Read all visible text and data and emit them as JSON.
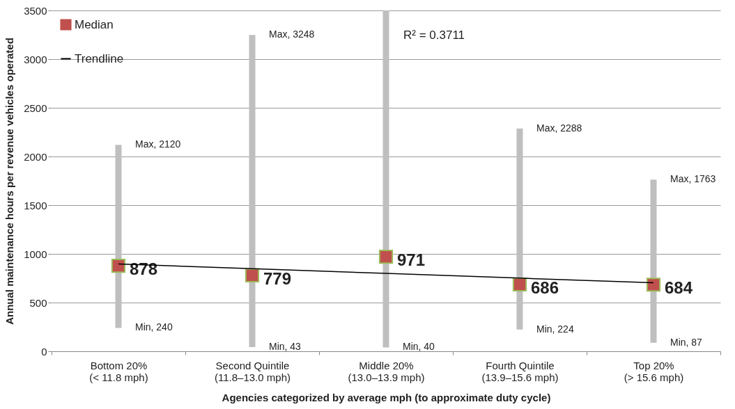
{
  "chart_data": {
    "type": "bar",
    "xlabel": "Agencies categorized by average mph (to approximate duty cycle)",
    "ylabel": "Annual maintenance hours per revenue vehicles operated",
    "categories": [
      "Bottom 20%\n(< 11.8 mph)",
      "Second Quintile\n(11.8–13.0 mph)",
      "Middle 20%\n(13.0–13.9 mph)",
      "Fourth Quintile\n(13.9–15.6 mph)",
      "Top 20%\n(> 15.6 mph)"
    ],
    "series": [
      {
        "color": "#bfbfbf",
        "base": [
          240,
          43,
          40,
          224,
          87
        ],
        "values": [
          1880,
          3205,
          3460,
          2064,
          1676
        ]
      },
      {
        "type": "scatter",
        "name": "Median",
        "color": "#c0504d",
        "marker": "square",
        "values": [
          878,
          779,
          971,
          686,
          684
        ],
        "value_labels": [
          "878",
          "779",
          "971",
          "686",
          "684"
        ]
      },
      {
        "type": "line",
        "name": "Trendline",
        "color": "#000000",
        "line_style": "solid",
        "values": [
          896,
          848,
          800,
          751,
          703
        ]
      }
    ],
    "ylim": [
      0,
      3500
    ],
    "yticks": [
      0,
      500,
      1000,
      1500,
      2000,
      2500,
      3000,
      3500
    ],
    "grid": "y",
    "legend": "top left",
    "annotations": [
      {
        "text": "Max, 2120",
        "x": "Bottom 20%\n(< 11.8 mph)",
        "y": 2120
      },
      {
        "text": "Min, 240",
        "x": "Bottom 20%\n(< 11.8 mph)",
        "y": 240
      },
      {
        "text": "Max, 3248",
        "x": "Second Quintile\n(11.8–13.0 mph)",
        "y": 3248
      },
      {
        "text": "Min, 43",
        "x": "Second Quintile\n(11.8–13.0 mph)",
        "y": 43
      },
      {
        "text": "Min, 40",
        "x": "Middle 20%\n(13.0–13.9 mph)",
        "y": 40
      },
      {
        "text": "Max, 2288",
        "x": "Fourth Quintile\n(13.9–15.6 mph)",
        "y": 2288
      },
      {
        "text": "Min, 224",
        "x": "Fourth Quintile\n(13.9–15.6 mph)",
        "y": 224
      },
      {
        "text": "Max, 1763",
        "x": "Top 20%\n(> 15.6 mph)",
        "y": 1763
      },
      {
        "text": "Min, 87",
        "x": "Top 20%\n(> 15.6 mph)",
        "y": 87
      },
      "R² = 0.3711"
    ]
  }
}
